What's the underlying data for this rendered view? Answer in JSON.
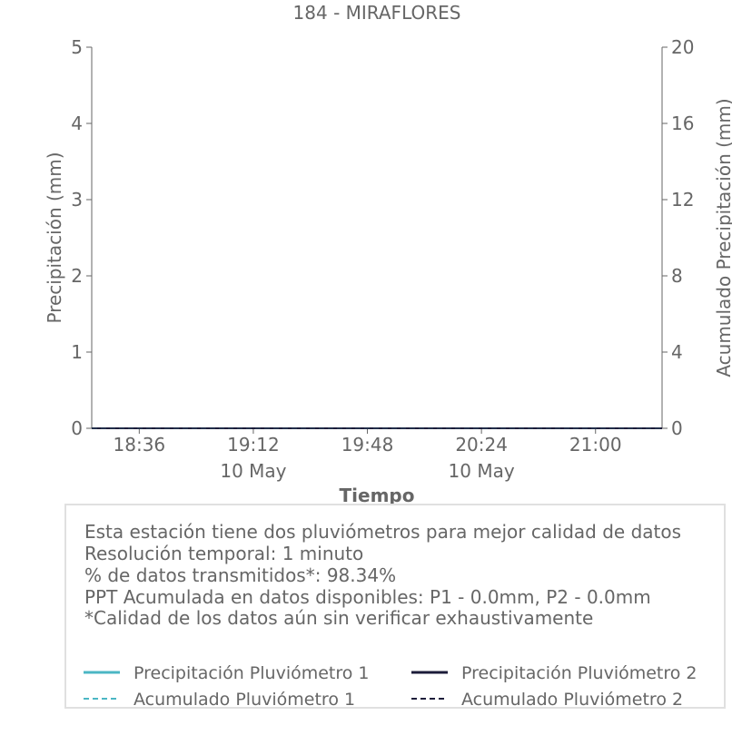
{
  "chart_data": {
    "type": "line",
    "title": "184 - MIRAFLORES",
    "xlabel": "Tiempo",
    "ylabel": "Precipitación (mm)",
    "y2label": "Acumulado Precipitación (mm)",
    "ylim": [
      0,
      5
    ],
    "y2lim": [
      0,
      20
    ],
    "yticks": [
      "0",
      "1",
      "2",
      "3",
      "4",
      "5"
    ],
    "y2ticks": [
      "0",
      "4",
      "8",
      "12",
      "16",
      "20"
    ],
    "xlim": [
      "18:21",
      "21:21"
    ],
    "xticks": [
      {
        "value": "18:36",
        "label": "18:36",
        "sublabel": ""
      },
      {
        "value": "19:12",
        "label": "19:12",
        "sublabel": "10 May"
      },
      {
        "value": "19:48",
        "label": "19:48",
        "sublabel": ""
      },
      {
        "value": "20:24",
        "label": "20:24",
        "sublabel": "10 May"
      },
      {
        "value": "21:00",
        "label": "21:00",
        "sublabel": ""
      }
    ],
    "grid": false,
    "series": [
      {
        "name": "Precipitación Pluviómetro 1",
        "axis": "left",
        "style": "solid",
        "color": "#4bb6c4",
        "x": [
          "18:21",
          "21:21"
        ],
        "values": [
          0,
          0
        ]
      },
      {
        "name": "Precipitación Pluviómetro 2",
        "axis": "left",
        "style": "solid",
        "color": "#1c1c3a",
        "x": [
          "18:21",
          "21:21"
        ],
        "values": [
          0,
          0
        ]
      },
      {
        "name": "Acumulado Pluviómetro 1",
        "axis": "right",
        "style": "dashed",
        "color": "#4bb6c4",
        "x": [
          "18:21",
          "21:21"
        ],
        "values": [
          0,
          0
        ]
      },
      {
        "name": "Acumulado Pluviómetro 2",
        "axis": "right",
        "style": "dashed",
        "color": "#1c1c3a",
        "x": [
          "18:21",
          "21:21"
        ],
        "values": [
          0,
          0
        ]
      }
    ],
    "annotation": [
      "Esta estación tiene dos pluviómetros para mejor calidad de datos",
      "Resolución temporal: 1 minuto",
      "% de datos transmitidos*: 98.34%",
      "PPT Acumulada en datos disponibles: P1 - 0.0mm, P2 - 0.0mm",
      "*Calidad de los datos aún sin verificar exhaustivamente"
    ],
    "legend_placement": "bottom"
  },
  "colors": {
    "text": "#666666",
    "axis": "#666666",
    "legend_border": "#e0e0e0"
  }
}
